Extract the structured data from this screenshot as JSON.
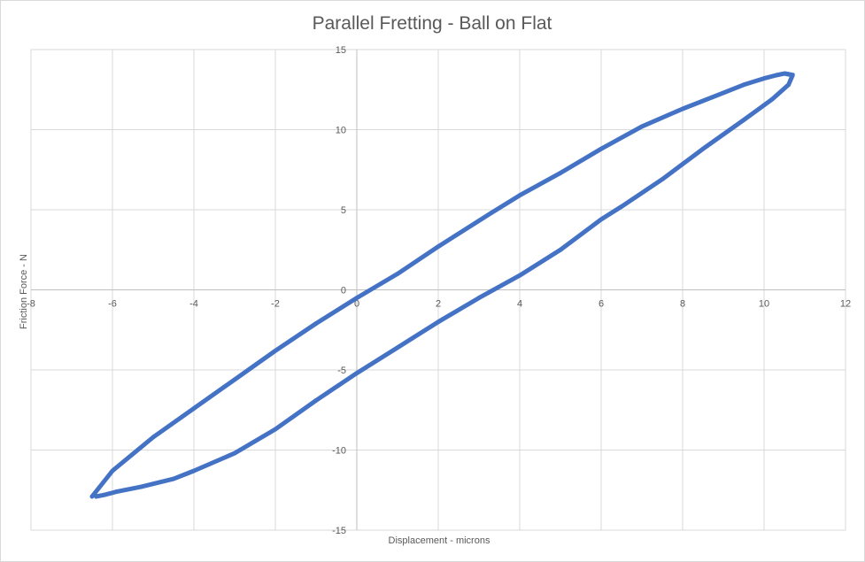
{
  "chart_data": {
    "type": "scatter",
    "title": "Parallel Fretting - Ball on Flat",
    "xlabel": "Displacement - microns",
    "ylabel": "Friction Force - N",
    "xlim": [
      -8,
      12
    ],
    "ylim": [
      -15,
      15
    ],
    "xticks": [
      -8,
      -6,
      -4,
      -2,
      0,
      2,
      4,
      6,
      8,
      10,
      12
    ],
    "yticks": [
      -15,
      -10,
      -5,
      0,
      5,
      10,
      15
    ],
    "grid": true,
    "legend": "none",
    "series_color": "#4472c4",
    "series": [
      {
        "x": [
          -6.4,
          -6.2,
          -5.9,
          -5.3,
          -4.5,
          -4.0,
          -3.0,
          -2.0,
          -1.0,
          0.0,
          1.0,
          2.0,
          3.0,
          4.0,
          5.0,
          6.0,
          6.5,
          7.5,
          8.5,
          9.5,
          10.2,
          10.6,
          10.7,
          10.5,
          10.3,
          10.0,
          9.5,
          9.0,
          8.0,
          7.0,
          6.0,
          5.0,
          4.0,
          3.3,
          2.0,
          1.0,
          0.0,
          -1.0,
          -2.0,
          -3.0,
          -4.0,
          -5.0,
          -6.0,
          -6.5
        ],
        "y": [
          -12.9,
          -12.8,
          -12.6,
          -12.3,
          -11.8,
          -11.3,
          -10.2,
          -8.7,
          -6.9,
          -5.2,
          -3.6,
          -2.0,
          -0.5,
          0.9,
          2.5,
          4.4,
          5.2,
          6.9,
          8.8,
          10.6,
          11.9,
          12.8,
          13.4,
          13.5,
          13.4,
          13.2,
          12.8,
          12.3,
          11.3,
          10.2,
          8.8,
          7.3,
          5.9,
          4.8,
          2.7,
          1.0,
          -0.5,
          -2.1,
          -3.8,
          -5.6,
          -7.4,
          -9.2,
          -11.3,
          -12.9
        ]
      }
    ]
  }
}
